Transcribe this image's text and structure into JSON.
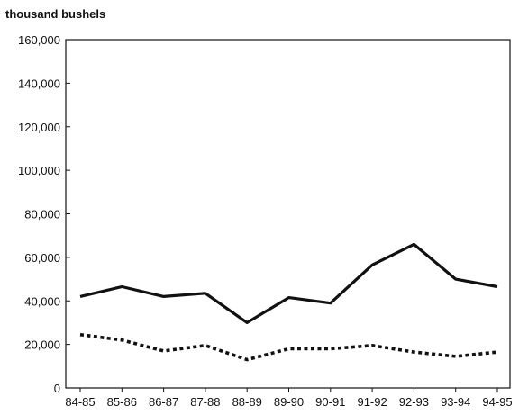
{
  "chart_data": {
    "type": "line",
    "title": "",
    "xlabel": "",
    "ylabel": "thousand bushels",
    "categories": [
      "84-85",
      "85-86",
      "86-87",
      "87-88",
      "88-89",
      "89-90",
      "90-91",
      "91-92",
      "92-93",
      "93-94",
      "94-95"
    ],
    "ylim": [
      0,
      160000
    ],
    "y_ticks": [
      {
        "value": 0,
        "label": "0"
      },
      {
        "value": 20000,
        "label": "20,000"
      },
      {
        "value": 40000,
        "label": "40,000"
      },
      {
        "value": 60000,
        "label": "60,000"
      },
      {
        "value": 80000,
        "label": "80,000"
      },
      {
        "value": 100000,
        "label": "100,000"
      },
      {
        "value": 120000,
        "label": "120,000"
      },
      {
        "value": 140000,
        "label": "140,000"
      },
      {
        "value": 160000,
        "label": "160,000"
      }
    ],
    "grid": false,
    "legend": "none",
    "series": [
      {
        "style": "solid",
        "color": "#111111",
        "values": [
          42000,
          46500,
          42000,
          43500,
          30000,
          41500,
          39000,
          56500,
          66000,
          50000,
          46500
        ]
      },
      {
        "style": "dotted",
        "color": "#111111",
        "values": [
          24500,
          22000,
          17000,
          19500,
          13000,
          18000,
          18000,
          19500,
          16500,
          14500,
          16500
        ]
      }
    ]
  }
}
